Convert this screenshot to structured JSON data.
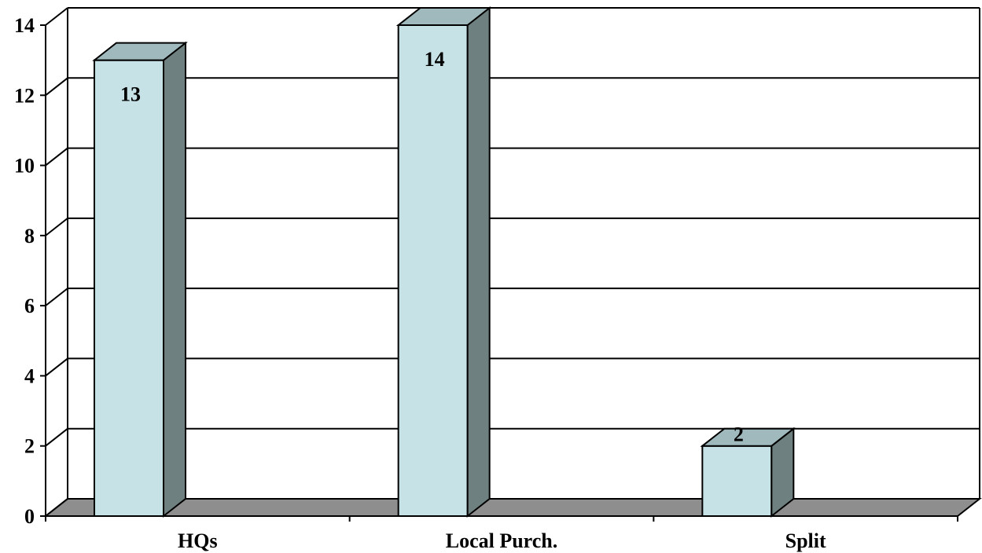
{
  "chart_data": {
    "type": "bar",
    "categories": [
      "HQs",
      "Local Purch.",
      "Split"
    ],
    "values": [
      13,
      14,
      2
    ],
    "data_labels": [
      "13",
      "14",
      "2"
    ],
    "ylim": [
      0,
      14
    ],
    "yticks": [
      "0",
      "2",
      "4",
      "6",
      "8",
      "10",
      "12",
      "14"
    ],
    "grid": true,
    "style": "3d-column",
    "colors": {
      "bar_front": "#c6e2e6",
      "bar_top": "#9fb9bd",
      "bar_side": "#6e807f",
      "floor": "#8e8e8e",
      "grid": "#000000"
    }
  }
}
